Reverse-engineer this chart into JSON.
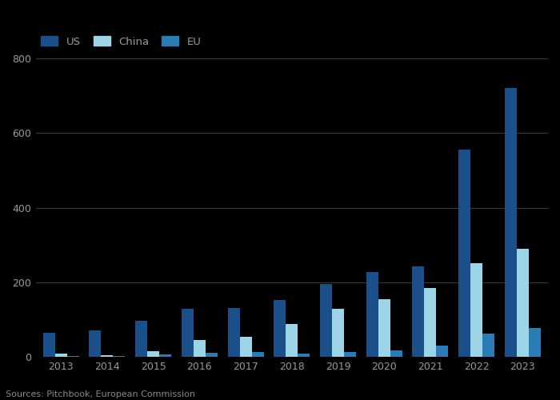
{
  "years": [
    2013,
    2014,
    2015,
    2016,
    2017,
    2018,
    2019,
    2020,
    2021,
    2022,
    2023
  ],
  "US": [
    65,
    72,
    98,
    130,
    132,
    153,
    195,
    228,
    242,
    555,
    720
  ],
  "China": [
    10,
    5,
    15,
    45,
    55,
    88,
    130,
    155,
    185,
    252,
    290
  ],
  "EU": [
    4,
    4,
    8,
    12,
    14,
    10,
    14,
    18,
    30,
    62,
    78
  ],
  "colors": {
    "US": "#1b4f8a",
    "China": "#9dd4e8",
    "EU": "#2b7cb5"
  },
  "ylim": [
    0,
    800
  ],
  "yticks": [
    0,
    200,
    400,
    600,
    800
  ],
  "source_text": "Sources: Pitchbook, European Commission",
  "bg_color": "#000000",
  "plot_bg_color": "#000000",
  "grid_color": "#555555",
  "tick_label_color": "#999999",
  "bar_width": 0.26,
  "legend_labels": [
    "US",
    "China",
    "EU"
  ]
}
